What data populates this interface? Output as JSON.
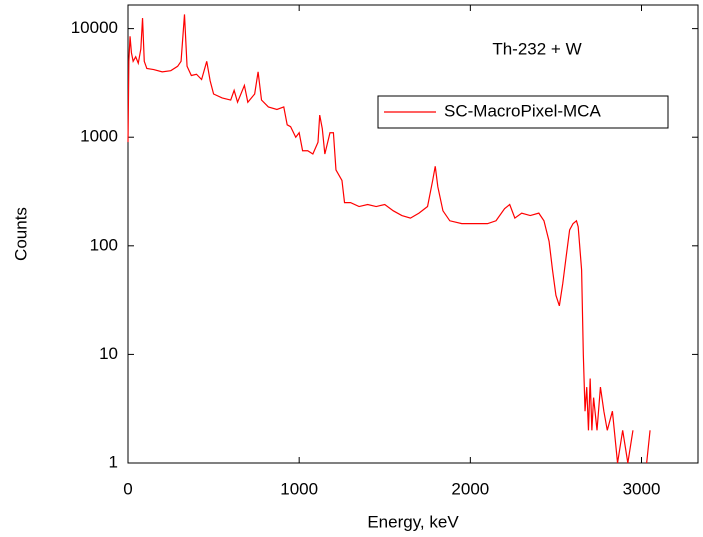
{
  "chart_data": {
    "type": "line",
    "annotation": "Th-232 + W",
    "x_label": "Energy, keV",
    "y_label": "Counts",
    "log_y": true,
    "legend": "upper right",
    "xlim": [
      0,
      3330
    ],
    "xticks": [
      0,
      1000,
      2000,
      3000
    ],
    "ylim": [
      1,
      16500
    ],
    "yticks": [
      1,
      10,
      100,
      1000,
      10000
    ],
    "x": [
      0,
      5,
      12,
      20,
      30,
      45,
      60,
      75,
      85,
      95,
      110,
      150,
      200,
      250,
      290,
      310,
      330,
      345,
      370,
      400,
      430,
      460,
      480,
      500,
      550,
      600,
      620,
      640,
      680,
      700,
      740,
      760,
      780,
      820,
      870,
      910,
      930,
      950,
      980,
      1000,
      1020,
      1050,
      1080,
      1110,
      1120,
      1135,
      1150,
      1180,
      1200,
      1215,
      1250,
      1265,
      1300,
      1350,
      1400,
      1450,
      1500,
      1550,
      1600,
      1650,
      1700,
      1750,
      1780,
      1795,
      1810,
      1840,
      1880,
      1950,
      2000,
      2050,
      2100,
      2150,
      2200,
      2230,
      2260,
      2300,
      2350,
      2400,
      2430,
      2460,
      2480,
      2500,
      2520,
      2540,
      2560,
      2580,
      2600,
      2620,
      2630,
      2650,
      2660,
      2670,
      2680,
      2690,
      2700,
      2710,
      2720,
      2740,
      2760,
      2780,
      2800,
      2830,
      2860,
      2890,
      2920,
      2950,
      3000,
      3030,
      3050
    ],
    "series": [
      {
        "name": "SC-MacroPixel-MCA",
        "color": "#ff0000",
        "values": [
          900,
          5000,
          8500,
          6000,
          5000,
          5500,
          4800,
          6500,
          12500,
          5000,
          4300,
          4200,
          4000,
          4100,
          4500,
          5000,
          13500,
          4500,
          3700,
          3800,
          3400,
          5000,
          3300,
          2500,
          2300,
          2200,
          2700,
          2100,
          3000,
          2100,
          2500,
          4000,
          2200,
          1900,
          1800,
          1900,
          1300,
          1250,
          1000,
          1100,
          750,
          750,
          700,
          900,
          1600,
          1200,
          700,
          1100,
          1100,
          500,
          400,
          250,
          250,
          230,
          240,
          230,
          240,
          210,
          190,
          180,
          200,
          230,
          400,
          540,
          350,
          210,
          170,
          160,
          160,
          160,
          160,
          170,
          220,
          240,
          180,
          200,
          190,
          200,
          170,
          110,
          60,
          35,
          28,
          45,
          80,
          140,
          160,
          170,
          150,
          60,
          10,
          3,
          5,
          2,
          6,
          2,
          4,
          2,
          5,
          3,
          2,
          3,
          1,
          2,
          1,
          2,
          null,
          1,
          2
        ]
      }
    ]
  }
}
